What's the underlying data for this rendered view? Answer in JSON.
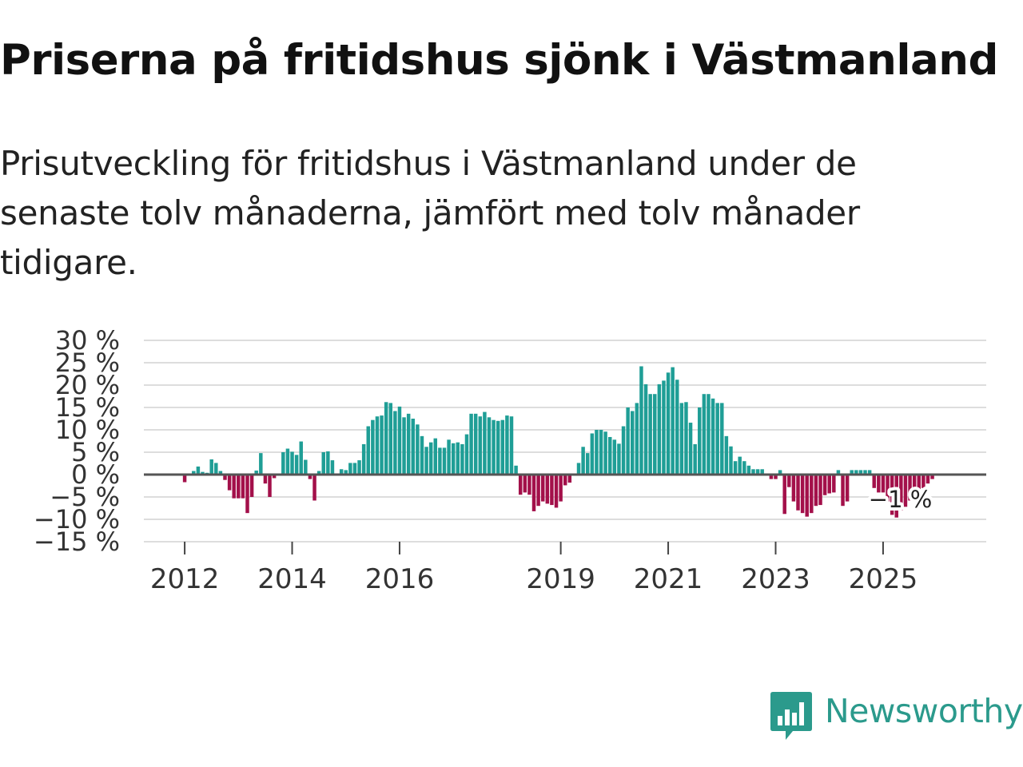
{
  "title": "Priserna på fritidshus sjönk i Västmanland",
  "subtitle": "Prisutveckling för fritidshus i Västmanland under de senaste tolv månaderna, jämfört med tolv månader tidigare.",
  "brand": {
    "name": "Newsworthy",
    "icon": "newsworthy-logo-icon"
  },
  "colors": {
    "positive": "#1f9e96",
    "negative": "#a3104a",
    "zero_line": "#555555",
    "grid": "#dddddd",
    "brand": "#2b9a8c"
  },
  "chart_data": {
    "type": "bar",
    "title": "Priserna på fritidshus sjönk i Västmanland",
    "xlabel": "",
    "ylabel": "",
    "ylim": [
      -15,
      30
    ],
    "y_ticks": [
      30,
      25,
      20,
      15,
      10,
      5,
      0,
      -5,
      -10,
      -15
    ],
    "y_tick_labels": [
      "30 %",
      "25 %",
      "20 %",
      "15 %",
      "10 %",
      "5 %",
      "0 %",
      "−5 %",
      "−10 %",
      "−15 %"
    ],
    "x_range": [
      2011.24,
      2026.92
    ],
    "x_ticks": [
      2012,
      2014,
      2016,
      2019,
      2021,
      2023,
      2025
    ],
    "x_tick_labels": [
      "2012",
      "2014",
      "2016",
      "2019",
      "2021",
      "2023",
      "2025"
    ],
    "start": {
      "year": 2012,
      "month": 1
    },
    "unit": "%",
    "last_label": "−1 %",
    "values": [
      -1.7,
      0,
      0.8,
      1.8,
      0.6,
      0.4,
      3.4,
      2.6,
      0.8,
      -1.2,
      -3.5,
      -5.3,
      -5.3,
      -5.3,
      -8.6,
      -5.0,
      0.9,
      4.8,
      -2.0,
      -5.0,
      -0.8,
      0,
      5.0,
      5.8,
      5.1,
      4.4,
      7.4,
      3.3,
      -1.0,
      -5.8,
      0.8,
      5.0,
      5.2,
      3.2,
      0,
      1.2,
      1.0,
      2.6,
      2.6,
      3.2,
      6.8,
      10.8,
      12.2,
      13.0,
      13.2,
      16.2,
      16.0,
      14.2,
      15.2,
      12.8,
      13.6,
      12.5,
      11.2,
      8.6,
      6.2,
      7.2,
      8.1,
      6.0,
      6.0,
      7.8,
      7.0,
      7.2,
      6.8,
      9.0,
      13.6,
      13.6,
      13.0,
      14.0,
      12.8,
      12.2,
      12.0,
      12.2,
      13.2,
      13.0,
      2.0,
      -4.5,
      -4.0,
      -4.5,
      -8.2,
      -7.0,
      -6.0,
      -6.5,
      -6.8,
      -7.4,
      -6.0,
      -2.4,
      -1.8,
      0,
      2.6,
      6.2,
      4.8,
      9.2,
      10.0,
      10.0,
      9.6,
      8.4,
      7.8,
      6.9,
      10.8,
      15.0,
      14.2,
      16.0,
      24.2,
      20.2,
      18.0,
      18.0,
      20.2,
      21.0,
      22.8,
      24.0,
      21.2,
      16.0,
      16.2,
      11.6,
      6.8,
      15.0,
      18.0,
      18.0,
      17.0,
      16.0,
      16.0,
      8.6,
      6.3,
      3.0,
      4.0,
      3.0,
      2.0,
      1.2,
      1.2,
      1.2,
      0,
      -1.0,
      -1.0,
      1.0,
      -8.8,
      -2.8,
      -6.0,
      -8.0,
      -8.6,
      -9.4,
      -8.6,
      -7.0,
      -6.8,
      -4.6,
      -4.2,
      -4.0,
      1.0,
      -7.0,
      -6.0,
      1.0,
      1.0,
      1.0,
      1.0,
      1.0,
      -3.0,
      -4.0,
      -4.0,
      -6.0,
      -9.0,
      -9.6,
      -8.0,
      -7.2,
      -5.8,
      -4.6,
      -3.8,
      -3.0,
      -2.0,
      -1.0
    ]
  }
}
